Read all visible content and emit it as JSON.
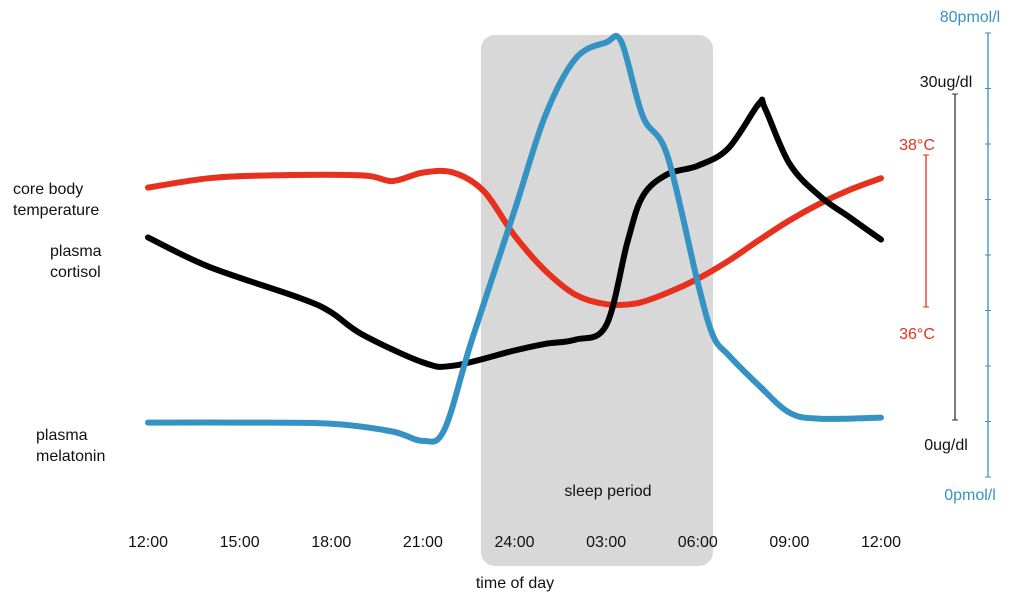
{
  "chart_data": {
    "type": "line",
    "xlabel": "time of day",
    "x_ticks": [
      "12:00",
      "15:00",
      "18:00",
      "21:00",
      "24:00",
      "03:00",
      "06:00",
      "09:00",
      "12:00"
    ],
    "x_range_hours": [
      12,
      36
    ],
    "sleep_period": {
      "label": "sleep period",
      "start_hours": 22.9,
      "end_hours": 30.5,
      "color": "#d8d8d8"
    },
    "series": [
      {
        "name_lines": [
          "core body",
          "temperature"
        ],
        "color": "#e8301e",
        "axis": "temperature",
        "points": [
          [
            12,
            37.44
          ],
          [
            14,
            37.54
          ],
          [
            16,
            37.57
          ],
          [
            19,
            37.57
          ],
          [
            20,
            37.51
          ],
          [
            21,
            37.6
          ],
          [
            22,
            37.6
          ],
          [
            23,
            37.4
          ],
          [
            24,
            36.93
          ],
          [
            25,
            36.56
          ],
          [
            26,
            36.3
          ],
          [
            27,
            36.2
          ],
          [
            28,
            36.21
          ],
          [
            29,
            36.32
          ],
          [
            30,
            36.47
          ],
          [
            31,
            36.66
          ],
          [
            32,
            36.88
          ],
          [
            33,
            37.09
          ],
          [
            34,
            37.27
          ],
          [
            35,
            37.42
          ],
          [
            36,
            37.54
          ]
        ]
      },
      {
        "name_lines": [
          "plasma",
          "cortisol"
        ],
        "color": "#000000",
        "axis": "cortisol",
        "points": [
          [
            12,
            16.8
          ],
          [
            14,
            14.1
          ],
          [
            17,
            11.2
          ],
          [
            18,
            9.9
          ],
          [
            19,
            7.9
          ],
          [
            21,
            5.3
          ],
          [
            22,
            5.0
          ],
          [
            24,
            6.4
          ],
          [
            25,
            7.0
          ],
          [
            26,
            7.4
          ],
          [
            27,
            8.7
          ],
          [
            27.7,
            16.4
          ],
          [
            28.2,
            20.6
          ],
          [
            29,
            22.6
          ],
          [
            30,
            23.4
          ],
          [
            31,
            25.0
          ],
          [
            32,
            29.1
          ],
          [
            32.2,
            28.7
          ],
          [
            33,
            23.6
          ],
          [
            34,
            20.6
          ],
          [
            35,
            18.6
          ],
          [
            36,
            16.6
          ]
        ]
      },
      {
        "name_lines": [
          "plasma",
          "melatonin"
        ],
        "color": "#3593c4",
        "axis": "melatonin",
        "points": [
          [
            12,
            9.8
          ],
          [
            15,
            9.8
          ],
          [
            18,
            9.6
          ],
          [
            20,
            8.2
          ],
          [
            21,
            6.5
          ],
          [
            21.7,
            8.5
          ],
          [
            22.6,
            24.6
          ],
          [
            24,
            48.0
          ],
          [
            25,
            65.0
          ],
          [
            26,
            75.4
          ],
          [
            27,
            78.3
          ],
          [
            27.5,
            78.4
          ],
          [
            28.2,
            65.0
          ],
          [
            29,
            58.0
          ],
          [
            30,
            35.0
          ],
          [
            30.5,
            25.5
          ],
          [
            31,
            22.0
          ],
          [
            32,
            16.5
          ],
          [
            33,
            11.6
          ],
          [
            34,
            10.5
          ],
          [
            36,
            10.7
          ]
        ]
      }
    ],
    "axes": {
      "temperature": {
        "min_label": "36°C",
        "max_label": "38°C",
        "range": [
          36,
          38
        ],
        "color": "#e8301e"
      },
      "cortisol": {
        "min_label": "0ug/dl",
        "max_label": "30ug/dl",
        "range": [
          0,
          30
        ],
        "color": "#111111"
      },
      "melatonin": {
        "min_label": "0pmol/l",
        "max_label": "80pmol/l",
        "range": [
          0,
          80
        ],
        "color": "#3593c4"
      }
    }
  }
}
